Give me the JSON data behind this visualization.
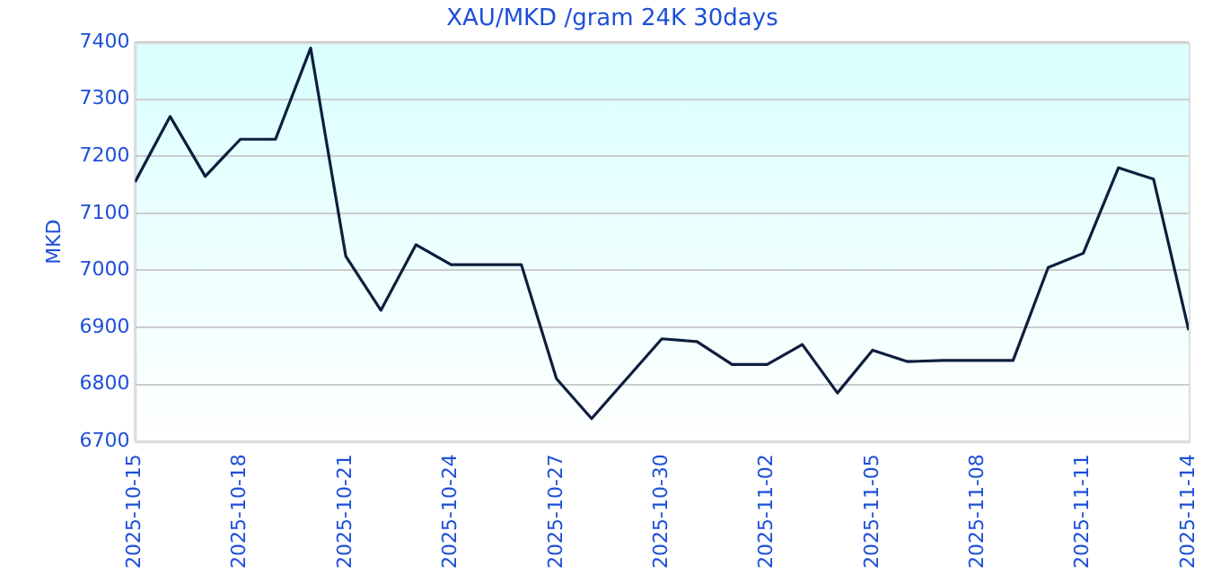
{
  "chart_data": {
    "type": "line",
    "title": "XAU/MKD /gram 24K 30days",
    "ylabel": "MKD",
    "x": [
      "2025-10-15",
      "2025-10-16",
      "2025-10-17",
      "2025-10-18",
      "2025-10-19",
      "2025-10-20",
      "2025-10-21",
      "2025-10-22",
      "2025-10-23",
      "2025-10-24",
      "2025-10-25",
      "2025-10-26",
      "2025-10-27",
      "2025-10-28",
      "2025-10-29",
      "2025-10-30",
      "2025-10-31",
      "2025-11-01",
      "2025-11-02",
      "2025-11-03",
      "2025-11-04",
      "2025-11-05",
      "2025-11-06",
      "2025-11-07",
      "2025-11-08",
      "2025-11-09",
      "2025-11-10",
      "2025-11-11",
      "2025-11-12",
      "2025-11-13",
      "2025-11-14"
    ],
    "series": [
      {
        "color": "#0d1f3c",
        "values": [
          7155,
          7270,
          7165,
          7230,
          7230,
          7390,
          7025,
          6930,
          7045,
          7010,
          7010,
          7010,
          6810,
          6740,
          6810,
          6880,
          6875,
          6835,
          6835,
          6870,
          6785,
          6860,
          6840,
          6842,
          6842,
          6842,
          7005,
          7030,
          7180,
          7160,
          6895
        ]
      }
    ],
    "xlim": [
      "2025-10-15",
      "2025-11-14"
    ],
    "xticks": [
      "2025-10-15",
      "2025-10-18",
      "2025-10-21",
      "2025-10-24",
      "2025-10-27",
      "2025-10-30",
      "2025-11-02",
      "2025-11-05",
      "2025-11-08",
      "2025-11-11",
      "2025-11-14"
    ],
    "ylim": [
      6700,
      7400
    ],
    "yticks": [
      6700,
      6800,
      6900,
      7000,
      7100,
      7200,
      7300,
      7400
    ],
    "grid": "y",
    "legend": false,
    "marker": "none",
    "line_style": "solid"
  }
}
